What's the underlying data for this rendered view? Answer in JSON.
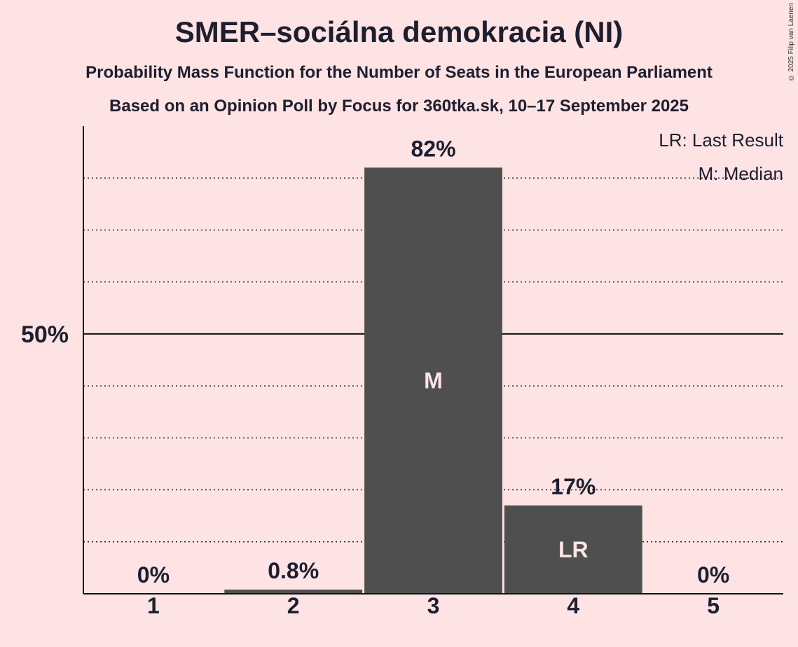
{
  "title": "SMER–sociálna demokracia (NI)",
  "subtitle1": "Probability Mass Function for the Number of Seats in the European Parliament",
  "subtitle2": "Based on an Opinion Poll by Focus for 360tka.sk, 10–17 September 2025",
  "copyright": "© 2025 Filip van Laenen",
  "legend": {
    "lr": "LR: Last Result",
    "m": "M: Median"
  },
  "colors": {
    "background": "#fde3e4",
    "bar": "#4f4f4f",
    "bar_label_inside": "#fde3e4",
    "text": "#1e1e2e"
  },
  "chart_data": {
    "type": "bar",
    "categories": [
      "1",
      "2",
      "3",
      "4",
      "5"
    ],
    "values": [
      0,
      0.8,
      82,
      17,
      0
    ],
    "value_labels": [
      "0%",
      "0.8%",
      "82%",
      "17%",
      "0%"
    ],
    "inside_labels": [
      "",
      "",
      "M",
      "LR",
      ""
    ],
    "ylim": [
      0,
      90
    ],
    "yticks_labeled": [
      {
        "value": 50,
        "label": "50%"
      }
    ],
    "gridlines_dotted": [
      10,
      20,
      30,
      40,
      60,
      70,
      80
    ],
    "grid": true,
    "legend_position": "top-right"
  }
}
